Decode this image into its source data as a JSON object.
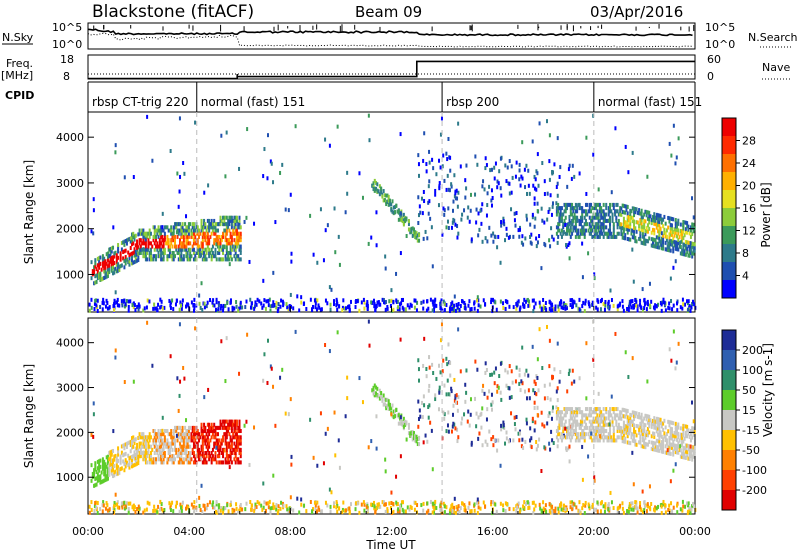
{
  "header": {
    "station": "Blackstone (fitACF)",
    "beam": "Beam 09",
    "date": "03/Apr/2016"
  },
  "chart_data": [
    {
      "panel": "noise",
      "type": "line",
      "left_label": "N.Sky",
      "right_label": "N.Search",
      "left_ticks": [
        "10^5",
        "10^0"
      ],
      "right_ticks": [
        "10^5",
        "10^0"
      ]
    },
    {
      "panel": "frequency_nave",
      "type": "line",
      "left_label": "Freq.",
      "left_unit": "[MHz]",
      "right_label": "Nave",
      "left_ticks": [
        18,
        8
      ],
      "right_ticks": [
        60,
        0
      ],
      "freq_step_hours": [
        0,
        5.9,
        13.0,
        24
      ],
      "freq_values": [
        8.2,
        9.2,
        16.8
      ]
    },
    {
      "panel": "cpid",
      "type": "table",
      "label": "CPID",
      "segments": [
        {
          "start": 0,
          "end": 4.3,
          "name": "rbsp CT-trig 220"
        },
        {
          "start": 4.3,
          "end": 14.0,
          "name": "normal (fast) 151"
        },
        {
          "start": 14.0,
          "end": 20.0,
          "name": "rbsp 200"
        },
        {
          "start": 20.0,
          "end": 24,
          "name": "normal (fast) 151"
        }
      ]
    },
    {
      "panel": "power",
      "type": "heatmap",
      "ylabel": "Slant Range [km]",
      "xlim": [
        0,
        24
      ],
      "ylim": [
        180,
        4550
      ],
      "yticks": [
        1000,
        2000,
        3000,
        4000
      ],
      "colorbar_label": "Power [dB]",
      "colorbar_ticks": [
        4,
        8,
        12,
        16,
        20,
        24,
        28
      ],
      "colorbar_range": [
        0,
        32
      ],
      "colorbar_colors": [
        "#0000ff",
        "#1f4fb0",
        "#2d7a8a",
        "#3b9a5a",
        "#8ccc3a",
        "#e6e020",
        "#ffb000",
        "#ff7000",
        "#ff2a00",
        "#ee0000"
      ]
    },
    {
      "panel": "velocity",
      "type": "heatmap",
      "ylabel": "Slant Range [km]",
      "xlabel": "Time UT",
      "xlim": [
        0,
        24
      ],
      "ylim": [
        180,
        4550
      ],
      "yticks": [
        1000,
        2000,
        3000,
        4000
      ],
      "xticks": [
        "00:00",
        "04:00",
        "08:00",
        "12:00",
        "16:00",
        "20:00",
        "00:00"
      ],
      "colorbar_label": "Velocity [m s-1]",
      "colorbar_ticks": [
        "200",
        "100",
        "50",
        "15",
        "-15",
        "-50",
        "-100",
        "-200"
      ],
      "colorbar_colors": [
        "#1e2c96",
        "#2f5fb0",
        "#2f8f6a",
        "#5dcc2a",
        "#c8c8c4",
        "#ffc000",
        "#ff8000",
        "#ff4000",
        "#e00000"
      ]
    }
  ]
}
